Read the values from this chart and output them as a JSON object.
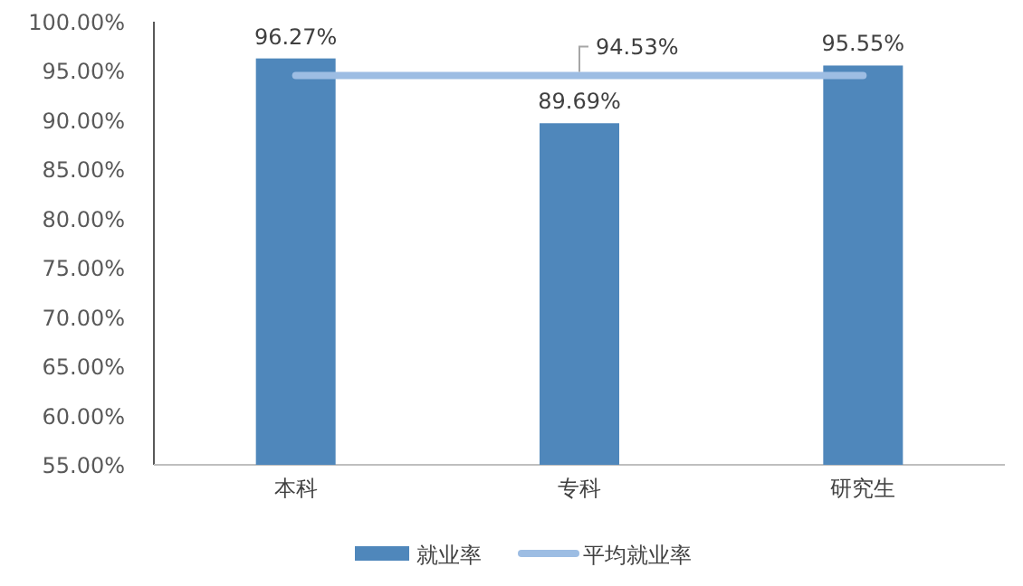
{
  "chart_data": {
    "type": "bar",
    "categories": [
      "本科",
      "专科",
      "研究生"
    ],
    "series": [
      {
        "name": "就业率",
        "color": "#4f87bb",
        "values": [
          96.27,
          89.69,
          95.55
        ],
        "value_labels": [
          "96.27%",
          "89.69%",
          "95.55%"
        ]
      },
      {
        "name": "平均就业率",
        "type": "line",
        "color": "#9dbde3",
        "values": [
          94.53,
          94.53,
          94.53
        ],
        "value_labels": [
          null,
          "94.53%",
          null
        ]
      }
    ],
    "ylim": [
      55,
      100
    ],
    "yticks": [
      {
        "value": 55,
        "label": "55.00%"
      },
      {
        "value": 60,
        "label": "60.00%"
      },
      {
        "value": 65,
        "label": "65.00%"
      },
      {
        "value": 70,
        "label": "70.00%"
      },
      {
        "value": 75,
        "label": "75.00%"
      },
      {
        "value": 80,
        "label": "80.00%"
      },
      {
        "value": 85,
        "label": "85.00%"
      },
      {
        "value": 90,
        "label": "90.00%"
      },
      {
        "value": 95,
        "label": "95.00%"
      },
      {
        "value": 100,
        "label": "100.00%"
      }
    ],
    "grid": false,
    "legend": "bottom",
    "marker": "none",
    "line_style": "solid"
  }
}
